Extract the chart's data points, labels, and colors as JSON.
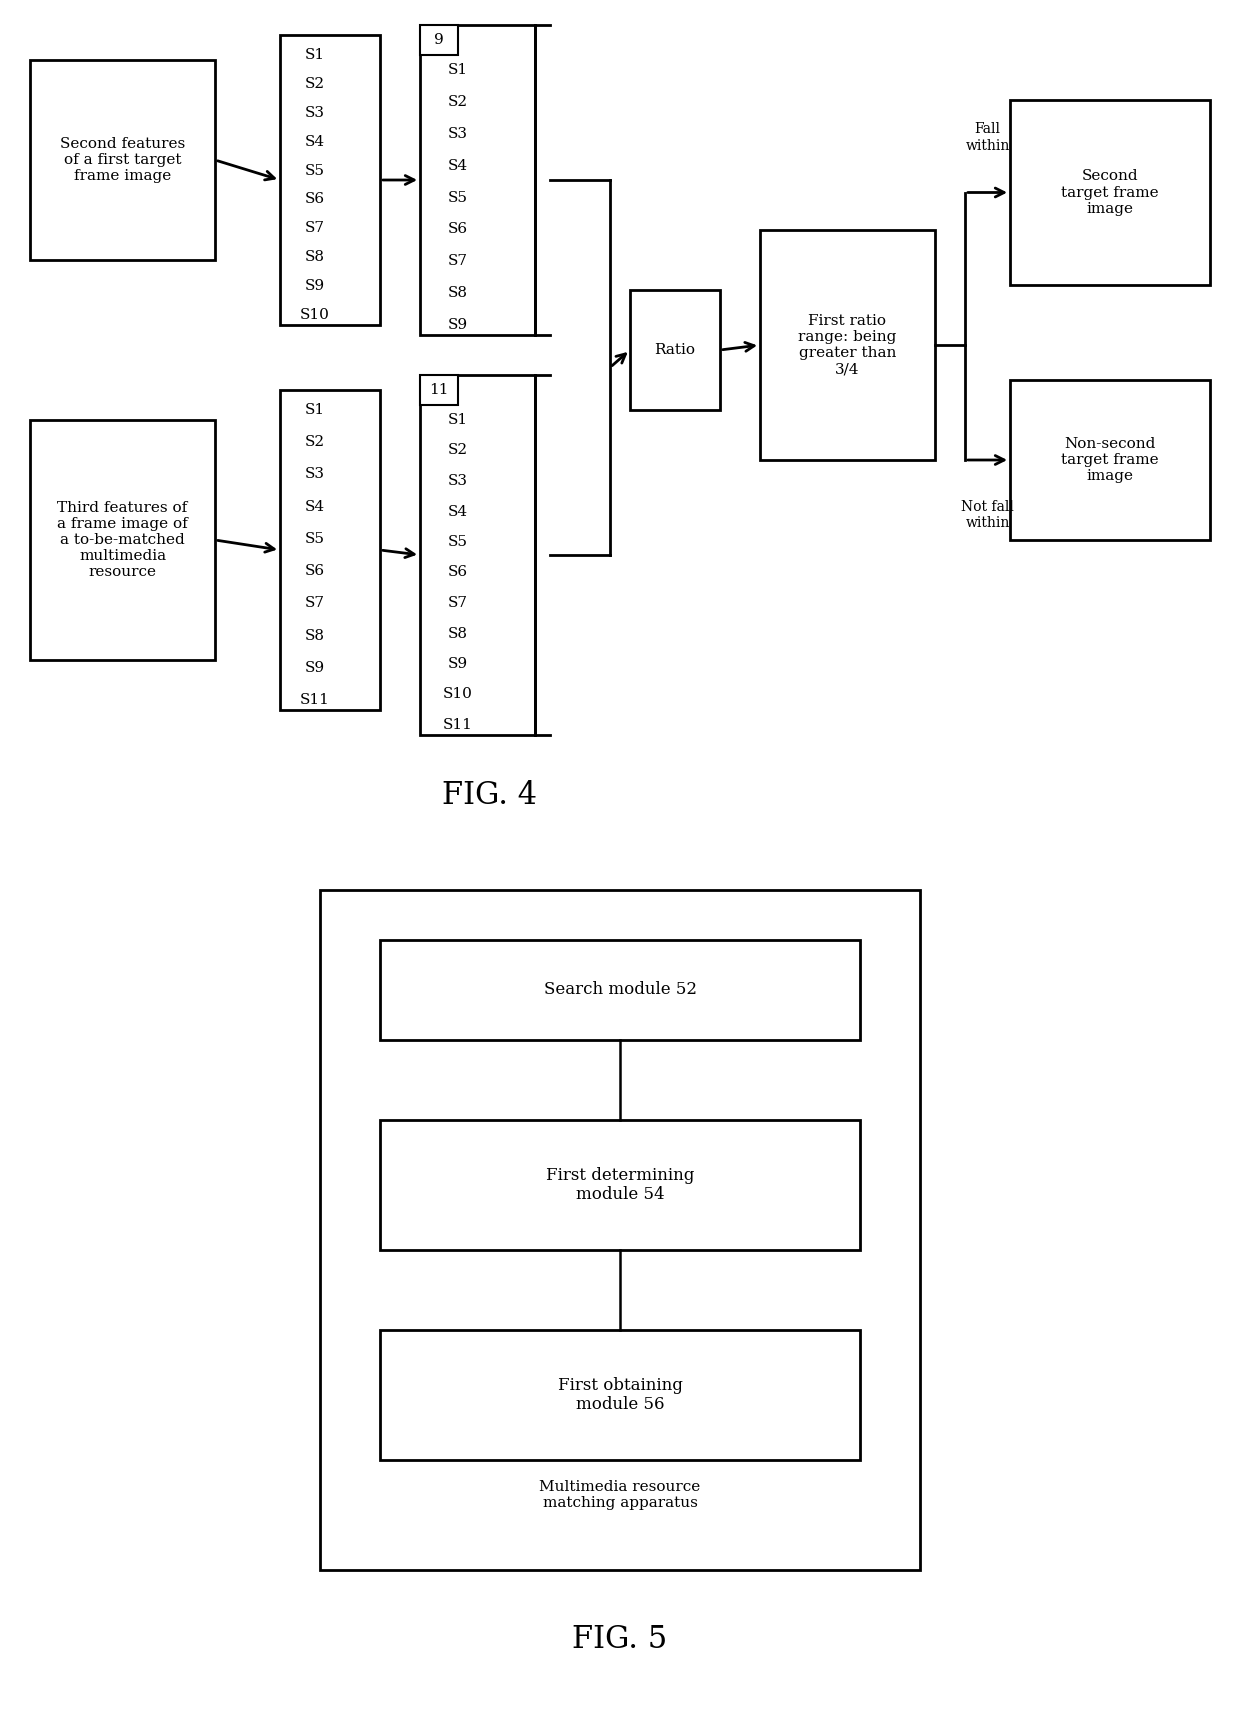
{
  "fig4_title": "FIG. 4",
  "fig5_title": "FIG. 5",
  "bg_color": "#ffffff",
  "fig4": {
    "box1_top_label": "Second features\nof a first target\nframe image",
    "box2_top_items": [
      "S1",
      "S2",
      "S3",
      "S4",
      "S5",
      "S6",
      "S7",
      "S8",
      "S9",
      "S10"
    ],
    "box3_top_num": "9",
    "box3_top_items": [
      "S1",
      "S2",
      "S3",
      "S4",
      "S5",
      "S6",
      "S7",
      "S8",
      "S9"
    ],
    "box1_bot_label": "Third features of\na frame image of\na to-be-matched\nmultimedia\nresource",
    "box2_bot_items": [
      "S1",
      "S2",
      "S3",
      "S4",
      "S5",
      "S6",
      "S7",
      "S8",
      "S9",
      "S11"
    ],
    "box3_bot_num": "11",
    "box3_bot_items": [
      "S1",
      "S2",
      "S3",
      "S4",
      "S5",
      "S6",
      "S7",
      "S8",
      "S9",
      "S10",
      "S11"
    ],
    "ratio_label": "Ratio",
    "first_ratio_label": "First ratio\nrange: being\ngreater than\n3/4",
    "fall_within_label": "Fall\nwithin",
    "not_fall_label": "Not fall\nwithin",
    "second_target_label": "Second\ntarget frame\nimage",
    "non_second_label": "Non-second\ntarget frame\nimage"
  },
  "fig5": {
    "outer_label": "Multimedia resource\nmatching apparatus",
    "box1_label": "Search module 52",
    "box2_label": "First determining\nmodule 54",
    "box3_label": "First obtaining\nmodule 56"
  }
}
